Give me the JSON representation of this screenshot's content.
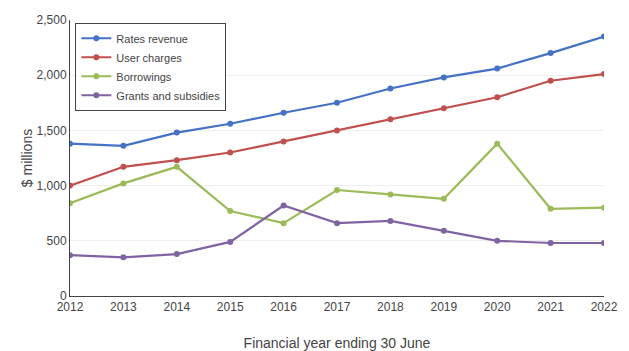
{
  "chart_data": {
    "type": "line",
    "x": [
      2012,
      2013,
      2014,
      2015,
      2016,
      2017,
      2018,
      2019,
      2020,
      2021,
      2022
    ],
    "series": [
      {
        "name": "Rates revenue",
        "color": "#4472C4",
        "values": [
          1380,
          1360,
          1480,
          1560,
          1660,
          1750,
          1880,
          1980,
          2060,
          2200,
          2350
        ]
      },
      {
        "name": "User charges",
        "color": "#C0504D",
        "values": [
          1000,
          1170,
          1230,
          1300,
          1400,
          1500,
          1600,
          1700,
          1800,
          1950,
          2010
        ]
      },
      {
        "name": "Borrowings",
        "color": "#9BBB59",
        "values": [
          840,
          1020,
          1170,
          770,
          660,
          960,
          920,
          880,
          1380,
          790,
          800
        ]
      },
      {
        "name": "Grants and subsidies",
        "color": "#8064A2",
        "values": [
          370,
          350,
          380,
          490,
          820,
          660,
          680,
          590,
          500,
          480,
          480
        ]
      }
    ],
    "xlabel": "Financial year ending 30 June",
    "ylabel": "$ millions",
    "xlim": [
      2012,
      2022
    ],
    "xticks": [
      2012,
      2013,
      2014,
      2015,
      2016,
      2017,
      2018,
      2019,
      2020,
      2021,
      2022
    ],
    "ylim": [
      0,
      2500
    ],
    "yticks": [
      0,
      500,
      {
        "value": 1000,
        "label": "1,000"
      },
      {
        "value": 1500,
        "label": "1,500"
      },
      {
        "value": 2000,
        "label": "2,000"
      },
      {
        "value": 2500,
        "label": "2,500"
      }
    ],
    "grid": "y",
    "legend": "upper left",
    "marker": "circle"
  }
}
